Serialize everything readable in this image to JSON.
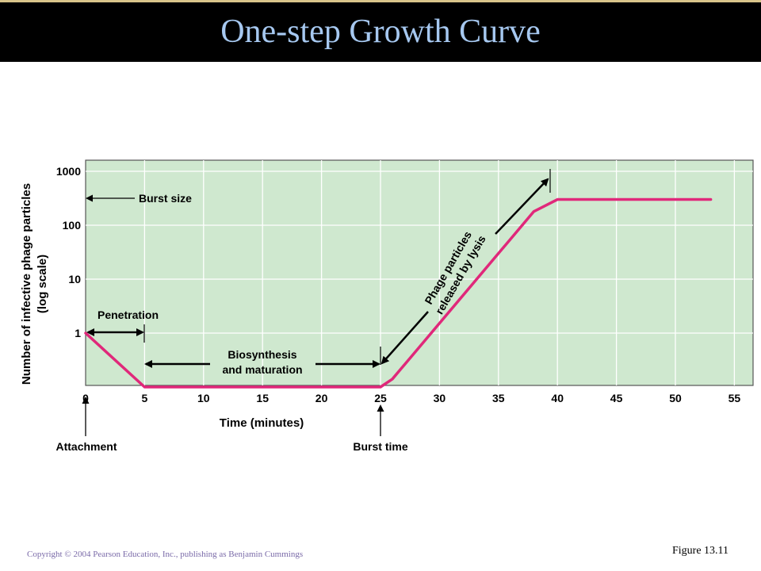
{
  "slide": {
    "title": "One-step Growth Curve",
    "copyright": "Copyright © 2004 Pearson Education, Inc., publishing as Benjamin Cummings",
    "figure_label": "Figure 13.11"
  },
  "colors": {
    "title_bar": "#000000",
    "title_text": "#a6c8f0",
    "plot_bg": "#cfe8cf",
    "grid": "#ffffff",
    "curve": "#e0287a",
    "annotation": "#000000"
  },
  "chart_data": {
    "type": "line",
    "xlabel": "Time (minutes)",
    "ylabel_lines": [
      "Number of infective phage particles",
      "(log scale)"
    ],
    "x_ticks": [
      "0",
      "5",
      "10",
      "15",
      "20",
      "25",
      "30",
      "35",
      "40",
      "45",
      "50",
      "55"
    ],
    "y_ticks": [
      "1",
      "10",
      "100",
      "1000"
    ],
    "xlim": [
      0,
      55
    ],
    "log_scale_y": true,
    "grid": true,
    "series": [
      {
        "x": [
          0,
          5,
          25,
          26,
          38,
          40,
          53
        ],
        "y": [
          1,
          0.1,
          0.1,
          0.14,
          180,
          300,
          300
        ]
      }
    ],
    "annotations": {
      "burst_size": "Burst size",
      "penetration": "Penetration",
      "biosynthesis": [
        "Biosynthesis",
        "and maturation"
      ],
      "lysis": [
        "Phage particles",
        "released by lysis"
      ],
      "attachment": "Attachment",
      "burst_time": "Burst time"
    }
  }
}
